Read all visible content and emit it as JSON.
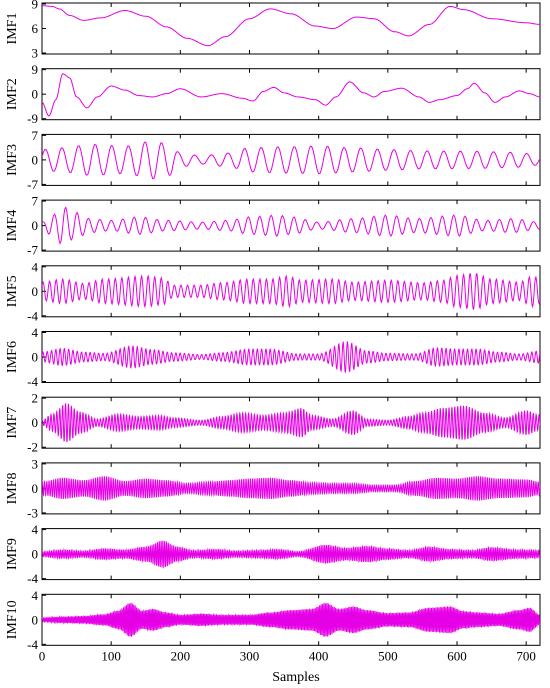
{
  "chart_data": {
    "type": "line",
    "xlabel": "Samples",
    "xlim": [
      0,
      720
    ],
    "x_ticks": [
      0,
      100,
      200,
      300,
      400,
      500,
      600,
      700
    ],
    "x_tick_labels": [
      "0",
      "100",
      "200",
      "300",
      "400",
      "500",
      "600",
      "700"
    ],
    "line_color": "#e600e6",
    "grid": false,
    "panels": [
      {
        "name": "IMF1",
        "ylim": [
          3,
          9
        ],
        "yticks": [
          3,
          6,
          9
        ],
        "ytick_labels": [
          "3",
          "6",
          "9"
        ],
        "shape": "trend",
        "knots": [
          [
            0,
            8.8
          ],
          [
            15,
            8.7
          ],
          [
            25,
            8.4
          ],
          [
            40,
            7.6
          ],
          [
            60,
            7.0
          ],
          [
            85,
            7.3
          ],
          [
            120,
            8.2
          ],
          [
            150,
            7.5
          ],
          [
            180,
            6.2
          ],
          [
            210,
            4.8
          ],
          [
            240,
            3.9
          ],
          [
            265,
            5.0
          ],
          [
            300,
            7.2
          ],
          [
            330,
            8.4
          ],
          [
            360,
            7.8
          ],
          [
            395,
            6.3
          ],
          [
            420,
            6.0
          ],
          [
            455,
            7.4
          ],
          [
            480,
            7.2
          ],
          [
            510,
            5.6
          ],
          [
            530,
            5.1
          ],
          [
            560,
            6.5
          ],
          [
            590,
            8.7
          ],
          [
            610,
            8.3
          ],
          [
            650,
            7.2
          ],
          [
            700,
            6.7
          ],
          [
            720,
            6.5
          ]
        ]
      },
      {
        "name": "IMF2",
        "ylim": [
          -9,
          9
        ],
        "yticks": [
          -9,
          0,
          9
        ],
        "ytick_labels": [
          "-9",
          "0",
          "9"
        ],
        "shape": "knots",
        "knots": [
          [
            0,
            -3
          ],
          [
            10,
            -8
          ],
          [
            20,
            -2
          ],
          [
            30,
            7.5
          ],
          [
            40,
            6
          ],
          [
            50,
            -1
          ],
          [
            65,
            -5
          ],
          [
            80,
            -1
          ],
          [
            100,
            3
          ],
          [
            120,
            1.5
          ],
          [
            140,
            -0.5
          ],
          [
            160,
            -1
          ],
          [
            180,
            0.2
          ],
          [
            200,
            2
          ],
          [
            230,
            -1
          ],
          [
            260,
            0.2
          ],
          [
            290,
            -1.5
          ],
          [
            305,
            -2.5
          ],
          [
            320,
            1
          ],
          [
            335,
            2.5
          ],
          [
            350,
            0.5
          ],
          [
            370,
            -1
          ],
          [
            395,
            -2
          ],
          [
            410,
            -4
          ],
          [
            425,
            -1
          ],
          [
            445,
            4.5
          ],
          [
            465,
            0.5
          ],
          [
            480,
            -1
          ],
          [
            495,
            1
          ],
          [
            520,
            2.2
          ],
          [
            545,
            -1
          ],
          [
            560,
            -3
          ],
          [
            575,
            -2
          ],
          [
            600,
            -0.5
          ],
          [
            615,
            2
          ],
          [
            625,
            4
          ],
          [
            640,
            0.5
          ],
          [
            655,
            -3
          ],
          [
            670,
            -1
          ],
          [
            690,
            1.2
          ],
          [
            705,
            0.2
          ],
          [
            720,
            -1
          ]
        ]
      },
      {
        "name": "IMF3",
        "ylim": [
          -7,
          7
        ],
        "yticks": [
          -7,
          0,
          7
        ],
        "ytick_labels": [
          "-7",
          "0",
          "7"
        ],
        "shape": "osc",
        "period": 24,
        "phase": 0.3,
        "env": [
          [
            0,
            3
          ],
          [
            30,
            3.5
          ],
          [
            70,
            4.5
          ],
          [
            120,
            4
          ],
          [
            160,
            5.5
          ],
          [
            185,
            4.5
          ],
          [
            200,
            2
          ],
          [
            230,
            1.2
          ],
          [
            270,
            2
          ],
          [
            300,
            3.5
          ],
          [
            350,
            3.8
          ],
          [
            400,
            4
          ],
          [
            450,
            3.5
          ],
          [
            500,
            3
          ],
          [
            550,
            2.6
          ],
          [
            620,
            2.5
          ],
          [
            680,
            2.2
          ],
          [
            720,
            1.5
          ]
        ]
      },
      {
        "name": "IMF4",
        "ylim": [
          -7,
          7
        ],
        "yticks": [
          -7,
          0,
          7
        ],
        "ytick_labels": [
          "-7",
          "0",
          "7"
        ],
        "shape": "osc",
        "period": 16.5,
        "phase": 1.1,
        "env": [
          [
            0,
            1
          ],
          [
            15,
            3
          ],
          [
            30,
            5.5
          ],
          [
            45,
            4
          ],
          [
            70,
            2
          ],
          [
            100,
            1.5
          ],
          [
            140,
            2.5
          ],
          [
            180,
            1.5
          ],
          [
            230,
            1
          ],
          [
            270,
            1.5
          ],
          [
            300,
            2.5
          ],
          [
            340,
            3
          ],
          [
            360,
            2.5
          ],
          [
            400,
            1
          ],
          [
            450,
            2
          ],
          [
            500,
            3
          ],
          [
            540,
            2
          ],
          [
            600,
            3
          ],
          [
            640,
            1.5
          ],
          [
            680,
            2
          ],
          [
            720,
            1
          ]
        ]
      },
      {
        "name": "IMF5",
        "ylim": [
          -4,
          4
        ],
        "yticks": [
          -4,
          0,
          4
        ],
        "ytick_labels": [
          "-4",
          "0",
          "4"
        ],
        "shape": "osc",
        "period": 9.5,
        "phase": 0.6,
        "env": [
          [
            0,
            1.5
          ],
          [
            30,
            2
          ],
          [
            60,
            1.3
          ],
          [
            90,
            2
          ],
          [
            150,
            2.5
          ],
          [
            175,
            2.2
          ],
          [
            190,
            1
          ],
          [
            230,
            1
          ],
          [
            260,
            1.4
          ],
          [
            300,
            2
          ],
          [
            330,
            2
          ],
          [
            355,
            2.5
          ],
          [
            375,
            1.8
          ],
          [
            420,
            2
          ],
          [
            450,
            1.5
          ],
          [
            500,
            1.8
          ],
          [
            550,
            1.4
          ],
          [
            580,
            1.8
          ],
          [
            600,
            2.6
          ],
          [
            625,
            3
          ],
          [
            650,
            2
          ],
          [
            690,
            1.5
          ],
          [
            710,
            2.5
          ],
          [
            720,
            2
          ]
        ]
      },
      {
        "name": "IMF6",
        "ylim": [
          -4,
          4
        ],
        "yticks": [
          -4,
          0,
          4
        ],
        "ytick_labels": [
          "-4",
          "0",
          "4"
        ],
        "shape": "osc",
        "period": 6.2,
        "phase": 0.2,
        "env": [
          [
            0,
            0.8
          ],
          [
            30,
            1.4
          ],
          [
            60,
            0.8
          ],
          [
            90,
            0.6
          ],
          [
            130,
            1.8
          ],
          [
            160,
            1.2
          ],
          [
            190,
            0.7
          ],
          [
            230,
            0.4
          ],
          [
            260,
            0.7
          ],
          [
            300,
            1.3
          ],
          [
            330,
            1.3
          ],
          [
            370,
            0.5
          ],
          [
            400,
            0.5
          ],
          [
            440,
            2.5
          ],
          [
            470,
            1
          ],
          [
            500,
            0.6
          ],
          [
            540,
            0.5
          ],
          [
            570,
            1.5
          ],
          [
            600,
            1.3
          ],
          [
            630,
            1.3
          ],
          [
            660,
            0.8
          ],
          [
            690,
            0.5
          ],
          [
            720,
            1
          ]
        ]
      },
      {
        "name": "IMF7",
        "ylim": [
          -2,
          2
        ],
        "yticks": [
          -2,
          0,
          2
        ],
        "ytick_labels": [
          "-2",
          "0",
          "2"
        ],
        "shape": "osc",
        "period": 4.2,
        "phase": 0.9,
        "env": [
          [
            0,
            0.2
          ],
          [
            15,
            0.7
          ],
          [
            35,
            1.6
          ],
          [
            55,
            0.9
          ],
          [
            80,
            0.3
          ],
          [
            110,
            0.7
          ],
          [
            140,
            0.5
          ],
          [
            170,
            0.6
          ],
          [
            190,
            0.4
          ],
          [
            230,
            0.2
          ],
          [
            260,
            0.5
          ],
          [
            290,
            0.8
          ],
          [
            320,
            0.6
          ],
          [
            350,
            0.8
          ],
          [
            375,
            1.2
          ],
          [
            390,
            0.6
          ],
          [
            420,
            0.3
          ],
          [
            450,
            1
          ],
          [
            470,
            0.3
          ],
          [
            500,
            0.2
          ],
          [
            530,
            0.5
          ],
          [
            550,
            0.8
          ],
          [
            580,
            1.2
          ],
          [
            610,
            1.4
          ],
          [
            640,
            0.8
          ],
          [
            670,
            0.4
          ],
          [
            700,
            1
          ],
          [
            720,
            0.6
          ]
        ]
      },
      {
        "name": "IMF8",
        "ylim": [
          -3,
          3
        ],
        "yticks": [
          -3,
          0,
          3
        ],
        "ytick_labels": [
          "-3",
          "0",
          "3"
        ],
        "shape": "osc",
        "period": 3.2,
        "phase": 0.4,
        "env": [
          [
            0,
            0.8
          ],
          [
            30,
            1.3
          ],
          [
            60,
            1
          ],
          [
            90,
            1.5
          ],
          [
            120,
            0.9
          ],
          [
            150,
            1.2
          ],
          [
            180,
            1
          ],
          [
            210,
            0.6
          ],
          [
            240,
            0.8
          ],
          [
            270,
            1
          ],
          [
            300,
            1.2
          ],
          [
            330,
            1.3
          ],
          [
            360,
            1
          ],
          [
            390,
            0.7
          ],
          [
            420,
            0.6
          ],
          [
            450,
            0.6
          ],
          [
            480,
            0.4
          ],
          [
            510,
            0.4
          ],
          [
            540,
            0.9
          ],
          [
            570,
            1.3
          ],
          [
            600,
            1.2
          ],
          [
            630,
            1.5
          ],
          [
            660,
            1.2
          ],
          [
            700,
            1.1
          ],
          [
            720,
            0.8
          ]
        ]
      },
      {
        "name": "IMF9",
        "ylim": [
          -4,
          4
        ],
        "yticks": [
          -4,
          0,
          4
        ],
        "ytick_labels": [
          "-4",
          "0",
          "4"
        ],
        "shape": "osc",
        "period": 2.6,
        "phase": 0.1,
        "env": [
          [
            0,
            0.4
          ],
          [
            30,
            0.7
          ],
          [
            60,
            0.5
          ],
          [
            90,
            0.9
          ],
          [
            120,
            0.7
          ],
          [
            150,
            1.2
          ],
          [
            175,
            2.2
          ],
          [
            195,
            1.2
          ],
          [
            220,
            0.6
          ],
          [
            250,
            0.8
          ],
          [
            280,
            0.5
          ],
          [
            310,
            0.6
          ],
          [
            340,
            0.8
          ],
          [
            370,
            0.4
          ],
          [
            410,
            1.5
          ],
          [
            440,
            1
          ],
          [
            470,
            1.3
          ],
          [
            500,
            0.9
          ],
          [
            530,
            0.6
          ],
          [
            560,
            1.2
          ],
          [
            590,
            0.8
          ],
          [
            620,
            0.6
          ],
          [
            650,
            1.1
          ],
          [
            690,
            0.7
          ],
          [
            720,
            0.6
          ]
        ]
      },
      {
        "name": "IMF10",
        "ylim": [
          -4,
          4
        ],
        "yticks": [
          -4,
          0,
          4
        ],
        "ytick_labels": [
          "-4",
          "0",
          "4"
        ],
        "shape": "osc",
        "period": 2.1,
        "phase": 0.5,
        "env": [
          [
            0,
            0.3
          ],
          [
            30,
            0.5
          ],
          [
            60,
            0.6
          ],
          [
            90,
            0.9
          ],
          [
            110,
            1.5
          ],
          [
            128,
            2.8
          ],
          [
            145,
            1.5
          ],
          [
            160,
            1.8
          ],
          [
            180,
            1.2
          ],
          [
            200,
            0.8
          ],
          [
            230,
            1
          ],
          [
            260,
            0.8
          ],
          [
            300,
            0.8
          ],
          [
            330,
            1.2
          ],
          [
            360,
            1.6
          ],
          [
            390,
            1.8
          ],
          [
            410,
            2.8
          ],
          [
            430,
            1.8
          ],
          [
            450,
            2.2
          ],
          [
            470,
            1.6
          ],
          [
            500,
            1.1
          ],
          [
            530,
            1.2
          ],
          [
            560,
            2
          ],
          [
            590,
            2.2
          ],
          [
            610,
            1.4
          ],
          [
            630,
            1.2
          ],
          [
            660,
            1
          ],
          [
            690,
            1.6
          ],
          [
            705,
            2
          ],
          [
            720,
            0.8
          ]
        ]
      }
    ]
  }
}
